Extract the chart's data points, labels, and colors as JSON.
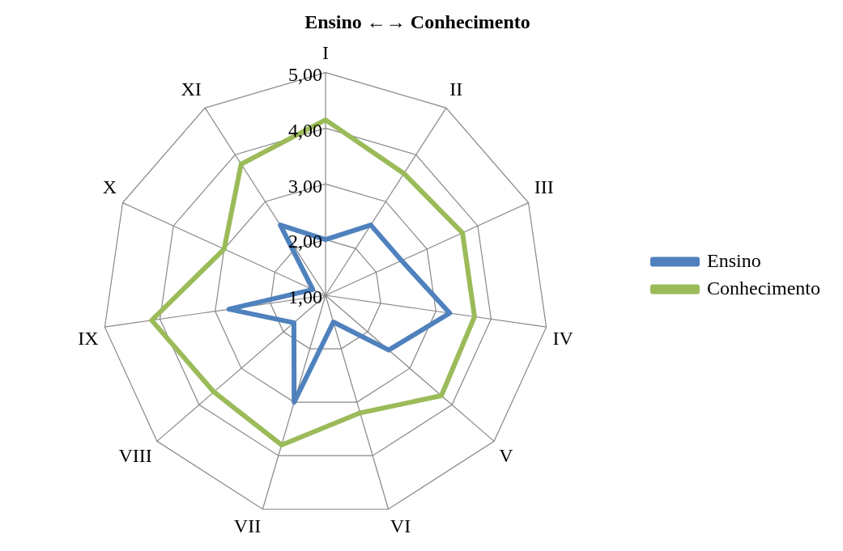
{
  "chart_data": {
    "type": "radar",
    "title": "Ensino ←→ Conhecimento",
    "categories": [
      "I",
      "II",
      "III",
      "IV",
      "V",
      "VI",
      "VII",
      "VIII",
      "IX",
      "X",
      "XI"
    ],
    "series": [
      {
        "name": "Ensino",
        "color": "#4f81bd",
        "values": [
          2.0,
          2.5,
          2.5,
          3.25,
          2.5,
          1.5,
          3.0,
          1.75,
          2.75,
          1.25,
          2.5
        ]
      },
      {
        "name": "Conhecimento",
        "color": "#9bbb59",
        "values": [
          4.15,
          3.6,
          3.7,
          3.7,
          3.75,
          3.2,
          3.8,
          3.65,
          4.15,
          3.0,
          3.8
        ]
      }
    ],
    "ylim": [
      1,
      5
    ],
    "yticks": [
      {
        "value": 1,
        "label": "1,00"
      },
      {
        "value": 2,
        "label": "2,00"
      },
      {
        "value": 3,
        "label": "3,00"
      },
      {
        "value": 4,
        "label": "4,00"
      },
      {
        "value": 5,
        "label": "5,00"
      }
    ],
    "grid": true,
    "legend": "right"
  }
}
